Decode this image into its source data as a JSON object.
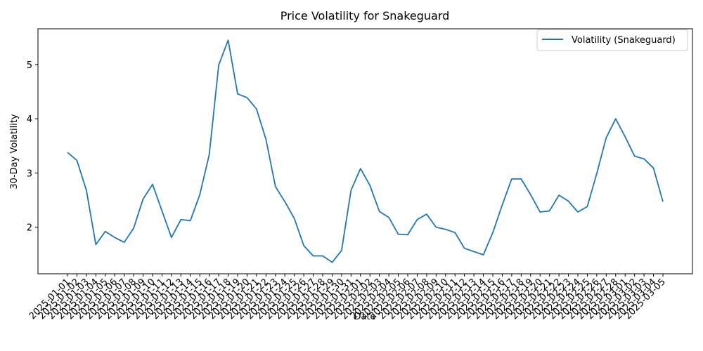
{
  "chart_data": {
    "type": "line",
    "title": "Price Volatility for Snakeguard",
    "xlabel": "Date",
    "ylabel": "30-Day Volatility",
    "x": [
      "2025-01-01",
      "2025-01-02",
      "2025-01-03",
      "2025-01-04",
      "2025-01-05",
      "2025-01-06",
      "2025-01-07",
      "2025-01-08",
      "2025-01-09",
      "2025-01-10",
      "2025-01-11",
      "2025-01-12",
      "2025-01-13",
      "2025-01-14",
      "2025-01-15",
      "2025-01-16",
      "2025-01-17",
      "2025-01-18",
      "2025-01-19",
      "2025-01-20",
      "2025-01-21",
      "2025-01-22",
      "2025-01-23",
      "2025-01-24",
      "2025-01-25",
      "2025-01-26",
      "2025-01-27",
      "2025-01-28",
      "2025-01-29",
      "2025-01-30",
      "2025-01-31",
      "2025-02-01",
      "2025-02-02",
      "2025-02-03",
      "2025-02-04",
      "2025-02-05",
      "2025-02-06",
      "2025-02-07",
      "2025-02-08",
      "2025-02-09",
      "2025-02-10",
      "2025-02-11",
      "2025-02-12",
      "2025-02-13",
      "2025-02-14",
      "2025-02-15",
      "2025-02-16",
      "2025-02-17",
      "2025-02-18",
      "2025-02-19",
      "2025-02-20",
      "2025-02-21",
      "2025-02-22",
      "2025-02-23",
      "2025-02-24",
      "2025-02-25",
      "2025-02-26",
      "2025-02-27",
      "2025-02-28",
      "2025-03-01",
      "2025-03-02",
      "2025-03-03",
      "2025-03-04",
      "2025-03-05"
    ],
    "series": [
      {
        "name": "Volatility (Snakeguard)",
        "color": "#1f77b4",
        "values": [
          3.38,
          3.23,
          2.68,
          1.68,
          1.92,
          1.81,
          1.72,
          1.98,
          2.52,
          2.79,
          2.3,
          1.81,
          2.14,
          2.12,
          2.6,
          3.34,
          4.99,
          5.45,
          4.46,
          4.39,
          4.18,
          3.62,
          2.75,
          2.47,
          2.16,
          1.66,
          1.47,
          1.47,
          1.35,
          1.57,
          2.68,
          3.08,
          2.77,
          2.29,
          2.18,
          1.87,
          1.86,
          2.14,
          2.24,
          2.0,
          1.96,
          1.9,
          1.61,
          1.55,
          1.49,
          1.9,
          2.41,
          2.89,
          2.89,
          2.6,
          2.28,
          2.3,
          2.59,
          2.48,
          2.28,
          2.38,
          2.99,
          3.65,
          4.0,
          3.67,
          3.31,
          3.26,
          3.09,
          2.47
        ]
      }
    ],
    "yticks": [
      2,
      3,
      4,
      5
    ],
    "ylim": [
      1.14,
      5.66
    ],
    "grid": false,
    "legend": "top-right"
  }
}
